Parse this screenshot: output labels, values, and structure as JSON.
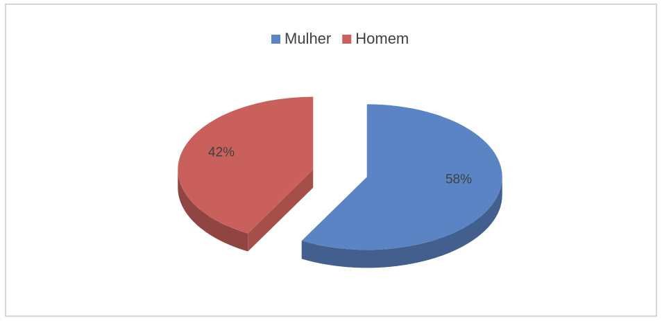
{
  "chart_data": {
    "type": "pie",
    "categories": [
      "Mulher",
      "Homem"
    ],
    "values": [
      58,
      42
    ],
    "value_labels": [
      "58%",
      "42%"
    ],
    "colors": [
      "#5b84c4",
      "#c9605c"
    ],
    "legend": "top"
  }
}
